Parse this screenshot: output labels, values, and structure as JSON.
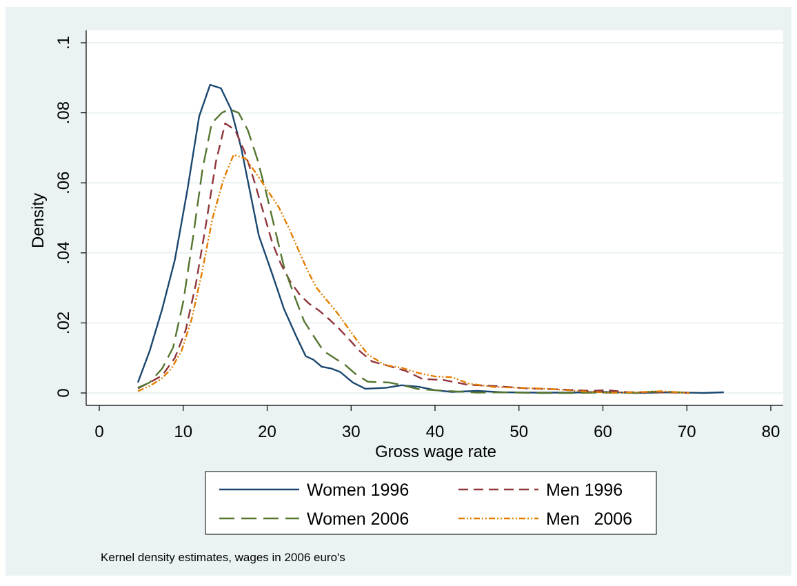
{
  "chart_data": {
    "type": "line",
    "title": "",
    "xlabel": "Gross wage rate",
    "ylabel": "Density",
    "xlim": [
      0,
      80
    ],
    "ylim": [
      0,
      0.1
    ],
    "x_ticks": [
      0,
      10,
      20,
      30,
      40,
      50,
      60,
      70,
      80
    ],
    "x_tick_labels": [
      "0",
      "10",
      "20",
      "30",
      "40",
      "50",
      "60",
      "70",
      "80"
    ],
    "y_ticks": [
      0,
      0.02,
      0.04,
      0.06,
      0.08,
      0.1
    ],
    "y_tick_labels": [
      "0",
      ".02",
      ".04",
      ".06",
      ".08",
      ".1"
    ],
    "grid": "horizontal",
    "legend_position": "bottom",
    "note": "Kernel density estimates, wages in 2006 euro's",
    "colors": {
      "outer_background": "#EAF2F3",
      "plot_background": "#FFFFFF",
      "grid": "#EAF2F3",
      "axis": "#000000"
    },
    "series": [
      {
        "name": "Women 1996",
        "color": "#1A476F",
        "dash": "solid",
        "points": [
          [
            4.6,
            0.003
          ],
          [
            6.0,
            0.012
          ],
          [
            7.5,
            0.024
          ],
          [
            9.0,
            0.038
          ],
          [
            10.5,
            0.058
          ],
          [
            11.9,
            0.079
          ],
          [
            13.2,
            0.088
          ],
          [
            14.5,
            0.087
          ],
          [
            15.7,
            0.081
          ],
          [
            16.9,
            0.07
          ],
          [
            18.0,
            0.057
          ],
          [
            19.0,
            0.045
          ],
          [
            20.6,
            0.034
          ],
          [
            22.0,
            0.024
          ],
          [
            23.5,
            0.016
          ],
          [
            24.6,
            0.0105
          ],
          [
            25.5,
            0.0095
          ],
          [
            26.5,
            0.0075
          ],
          [
            27.6,
            0.007
          ],
          [
            28.7,
            0.006
          ],
          [
            30.2,
            0.003
          ],
          [
            31.7,
            0.0012
          ],
          [
            34.2,
            0.0015
          ],
          [
            36.0,
            0.0022
          ],
          [
            38.0,
            0.0018
          ],
          [
            40.0,
            0.0008
          ],
          [
            42.0,
            0.0003
          ],
          [
            45.0,
            0.0006
          ],
          [
            48.0,
            0.0002
          ],
          [
            52.0,
            0.0001
          ],
          [
            56.0,
            0.0001
          ],
          [
            60.0,
            0.0003
          ],
          [
            64.0,
            0.0
          ],
          [
            68.0,
            0.0002
          ],
          [
            72.0,
            0.0
          ],
          [
            74.4,
            0.0002
          ]
        ]
      },
      {
        "name": "Men 1996",
        "color": "#90353B",
        "dash": "medium",
        "points": [
          [
            4.6,
            0.0013
          ],
          [
            6.0,
            0.003
          ],
          [
            7.5,
            0.005
          ],
          [
            9.0,
            0.01
          ],
          [
            10.3,
            0.018
          ],
          [
            11.5,
            0.031
          ],
          [
            12.7,
            0.048
          ],
          [
            13.9,
            0.066
          ],
          [
            15.0,
            0.077
          ],
          [
            16.2,
            0.075
          ],
          [
            17.3,
            0.069
          ],
          [
            18.4,
            0.061
          ],
          [
            19.5,
            0.052
          ],
          [
            20.6,
            0.043
          ],
          [
            21.6,
            0.037
          ],
          [
            22.7,
            0.032
          ],
          [
            23.9,
            0.028
          ],
          [
            25.0,
            0.0255
          ],
          [
            26.2,
            0.0235
          ],
          [
            27.4,
            0.021
          ],
          [
            28.5,
            0.0185
          ],
          [
            29.7,
            0.0155
          ],
          [
            31.0,
            0.012
          ],
          [
            32.5,
            0.009
          ],
          [
            34.5,
            0.0077
          ],
          [
            36.5,
            0.0063
          ],
          [
            38.5,
            0.004
          ],
          [
            41.0,
            0.0037
          ],
          [
            44.0,
            0.0023
          ],
          [
            47.0,
            0.002
          ],
          [
            51.0,
            0.0013
          ],
          [
            55.0,
            0.001
          ],
          [
            58.5,
            0.0006
          ],
          [
            60.5,
            0.0008
          ],
          [
            63.0,
            0.0002
          ],
          [
            66.0,
            0.0002
          ],
          [
            69.0,
            0.0001
          ],
          [
            70.3,
            0.0
          ]
        ]
      },
      {
        "name": "Women 2006",
        "color": "#55752F",
        "dash": "long",
        "points": [
          [
            4.6,
            0.0015
          ],
          [
            6.0,
            0.003
          ],
          [
            7.5,
            0.007
          ],
          [
            8.8,
            0.013
          ],
          [
            10.0,
            0.026
          ],
          [
            11.2,
            0.045
          ],
          [
            12.3,
            0.064
          ],
          [
            13.4,
            0.077
          ],
          [
            14.6,
            0.08
          ],
          [
            15.5,
            0.081
          ],
          [
            16.6,
            0.08
          ],
          [
            17.7,
            0.075
          ],
          [
            18.8,
            0.067
          ],
          [
            19.9,
            0.057
          ],
          [
            21.0,
            0.046
          ],
          [
            22.0,
            0.036
          ],
          [
            23.2,
            0.028
          ],
          [
            24.4,
            0.0205
          ],
          [
            25.6,
            0.016
          ],
          [
            26.7,
            0.012
          ],
          [
            28.0,
            0.01
          ],
          [
            29.3,
            0.008
          ],
          [
            30.5,
            0.0055
          ],
          [
            32.0,
            0.0032
          ],
          [
            34.5,
            0.003
          ],
          [
            36.0,
            0.0023
          ],
          [
            38.0,
            0.0011
          ],
          [
            40.0,
            0.0008
          ],
          [
            42.0,
            0.0005
          ],
          [
            45.0,
            0.0001
          ],
          [
            48.0,
            0.0002
          ],
          [
            52.0,
            0.0
          ],
          [
            56.0,
            0.0
          ],
          [
            60.0,
            0.0001
          ],
          [
            64.0,
            0.0
          ],
          [
            66.0,
            0.0004
          ],
          [
            68.0,
            0.0003
          ],
          [
            70.0,
            0.0001
          ]
        ]
      },
      {
        "name": "Men   2006",
        "color": "#E37E00",
        "dash": "dashdot",
        "points": [
          [
            4.6,
            0.0005
          ],
          [
            6.0,
            0.002
          ],
          [
            7.4,
            0.004
          ],
          [
            8.6,
            0.007
          ],
          [
            9.8,
            0.012
          ],
          [
            11.0,
            0.021
          ],
          [
            12.2,
            0.034
          ],
          [
            13.5,
            0.05
          ],
          [
            14.8,
            0.061
          ],
          [
            16.0,
            0.068
          ],
          [
            17.4,
            0.067
          ],
          [
            18.6,
            0.063
          ],
          [
            20.0,
            0.058
          ],
          [
            21.4,
            0.053
          ],
          [
            22.6,
            0.047
          ],
          [
            23.7,
            0.041
          ],
          [
            24.8,
            0.035
          ],
          [
            25.9,
            0.03
          ],
          [
            27.1,
            0.0265
          ],
          [
            28.3,
            0.023
          ],
          [
            29.5,
            0.019
          ],
          [
            30.7,
            0.015
          ],
          [
            32.0,
            0.011
          ],
          [
            34.0,
            0.008
          ],
          [
            36.0,
            0.0072
          ],
          [
            38.0,
            0.0057
          ],
          [
            40.0,
            0.0047
          ],
          [
            42.0,
            0.0045
          ],
          [
            44.0,
            0.0027
          ],
          [
            47.0,
            0.0017
          ],
          [
            50.0,
            0.0015
          ],
          [
            54.0,
            0.0011
          ],
          [
            58.0,
            0.0004
          ],
          [
            61.0,
            0.0001
          ],
          [
            64.0,
            0.0002
          ],
          [
            67.0,
            0.0005
          ],
          [
            70.3,
            0.0
          ]
        ]
      }
    ],
    "legend": {
      "columns": 2,
      "order": [
        0,
        1,
        2,
        3
      ]
    }
  }
}
